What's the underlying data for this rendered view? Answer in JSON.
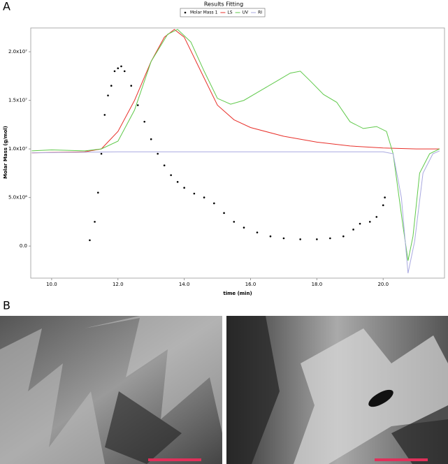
{
  "panel_labels": [
    "A",
    "B"
  ],
  "chart_data": {
    "type": "line",
    "title": "Results Fitting",
    "x_label": "time (min)",
    "y_label": "Molar Mass (g/mol)",
    "xlim": [
      9.37,
      21.85
    ],
    "ylim": [
      -3300000,
      22450000
    ],
    "xticks": [
      {
        "value": 10,
        "label": "10.0"
      },
      {
        "value": 12,
        "label": "12.0"
      },
      {
        "value": 14,
        "label": "14.0"
      },
      {
        "value": 16,
        "label": "16.0"
      },
      {
        "value": 18,
        "label": "18.0"
      },
      {
        "value": 20,
        "label": "20.0"
      }
    ],
    "yticks": [
      {
        "value": 0,
        "label": "0.0"
      },
      {
        "value": 5000000,
        "label": "5.0x10⁶"
      },
      {
        "value": 10000000,
        "label": "1.0x10⁷"
      },
      {
        "value": 15000000,
        "label": "1.5x10⁷"
      },
      {
        "value": 20000000,
        "label": "2.0x10⁷"
      }
    ],
    "series": [
      {
        "name": "Molar Mass 1",
        "style": "dots",
        "color": "#000000",
        "x": [
          11.15,
          11.3,
          11.4,
          11.5,
          11.6,
          11.7,
          11.8,
          11.9,
          12.0,
          12.1,
          12.2,
          12.4,
          12.6,
          12.8,
          13.0,
          13.2,
          13.4,
          13.6,
          13.8,
          14.0,
          14.3,
          14.6,
          14.9,
          15.2,
          15.5,
          15.8,
          16.2,
          16.6,
          17.0,
          17.5,
          18.0,
          18.4,
          18.8,
          19.1,
          19.3,
          19.6,
          19.8,
          20.0,
          20.05
        ],
        "values": [
          600000,
          2500000,
          5500000,
          9500000,
          13500000,
          15500000,
          16500000,
          18000000,
          18300000,
          18500000,
          18000000,
          16500000,
          14500000,
          12800000,
          11000000,
          9500000,
          8300000,
          7300000,
          6600000,
          6000000,
          5400000,
          5000000,
          4400000,
          3400000,
          2500000,
          1900000,
          1400000,
          1000000,
          800000,
          700000,
          700000,
          800000,
          1000000,
          1700000,
          2300000,
          2500000,
          3000000,
          4200000,
          5000000
        ]
      },
      {
        "name": "LS",
        "style": "line",
        "color": "#e8302a",
        "x": [
          9.4,
          11.0,
          11.5,
          12.0,
          12.5,
          13.0,
          13.4,
          13.7,
          14.0,
          14.5,
          15.0,
          15.5,
          16.0,
          17.0,
          18.0,
          19.0,
          20.0,
          21.0,
          21.7
        ],
        "values": [
          9600000,
          9700000,
          10000000,
          11800000,
          15000000,
          19000000,
          21500000,
          22300000,
          21500000,
          18000000,
          14500000,
          13000000,
          12200000,
          11300000,
          10700000,
          10300000,
          10100000,
          10000000,
          10000000
        ]
      },
      {
        "name": "UV",
        "style": "line",
        "color": "#5fc94a",
        "x": [
          9.4,
          10.0,
          11.0,
          11.5,
          12.0,
          12.5,
          13.0,
          13.5,
          13.8,
          14.2,
          14.6,
          15.0,
          15.4,
          15.8,
          16.3,
          16.8,
          17.2,
          17.5,
          17.8,
          18.2,
          18.6,
          19.0,
          19.4,
          19.8,
          20.1,
          20.3,
          20.6,
          20.75,
          20.9,
          21.1,
          21.4,
          21.7
        ],
        "values": [
          9800000,
          9900000,
          9800000,
          10000000,
          10800000,
          14000000,
          19000000,
          21800000,
          22300000,
          21000000,
          18000000,
          15200000,
          14600000,
          15000000,
          16000000,
          17000000,
          17800000,
          18000000,
          17000000,
          15600000,
          14800000,
          12800000,
          12100000,
          12300000,
          11800000,
          9500000,
          2000000,
          -1500000,
          1000000,
          7500000,
          9500000,
          10000000
        ]
      },
      {
        "name": "RI",
        "style": "line",
        "color": "#a9a9e0",
        "x": [
          9.4,
          12.0,
          16.0,
          20.0,
          20.3,
          20.55,
          20.75,
          20.95,
          21.2,
          21.5,
          21.7
        ],
        "values": [
          9600000,
          9700000,
          9700000,
          9700000,
          9500000,
          5000000,
          -2800000,
          500000,
          7500000,
          9500000,
          9800000
        ]
      }
    ]
  }
}
